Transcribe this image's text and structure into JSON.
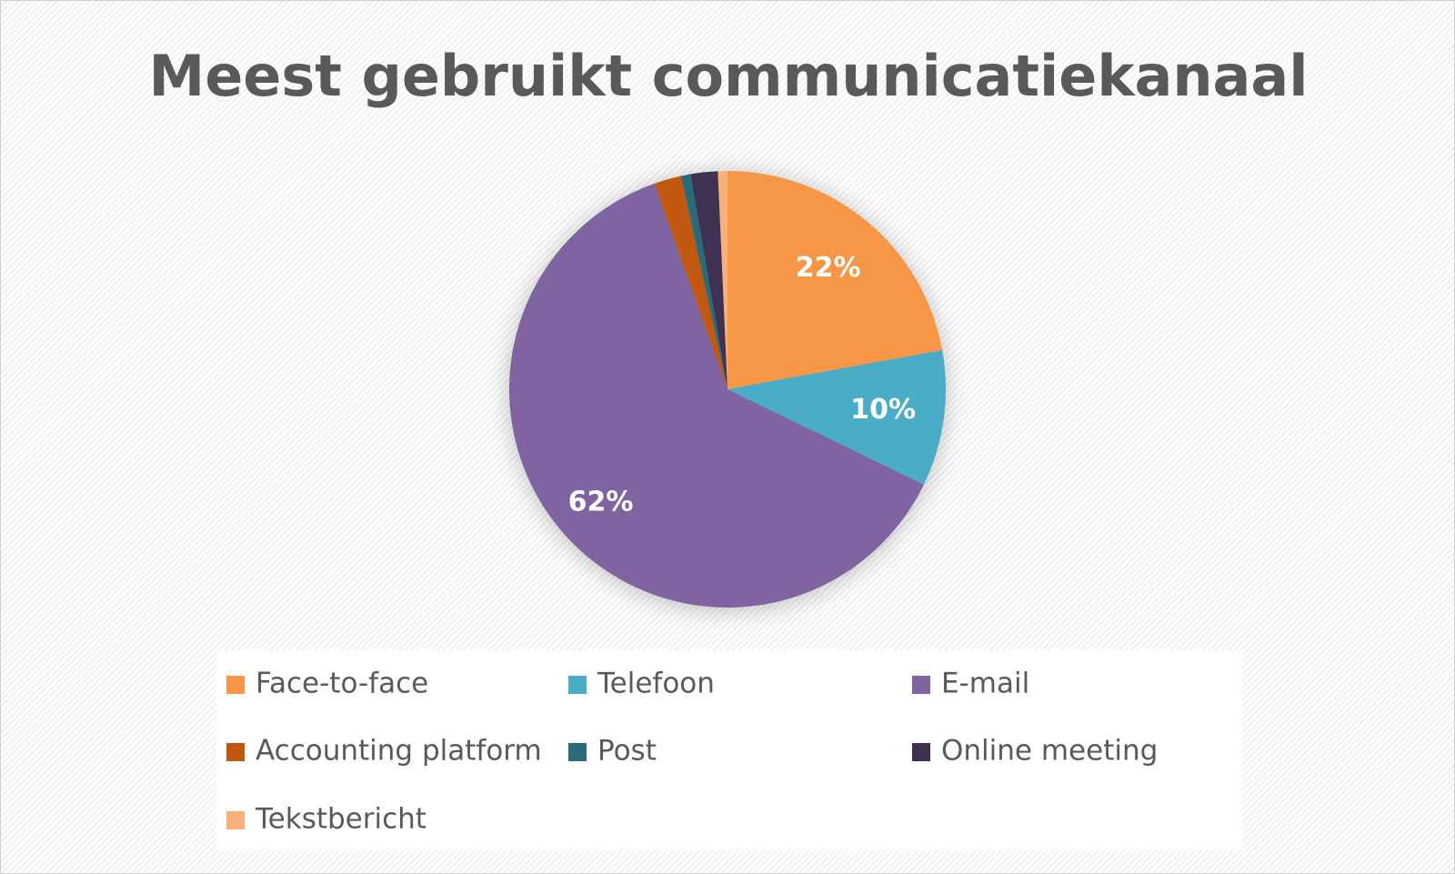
{
  "chart_data": {
    "type": "pie",
    "title": "Meest gebruikt communicatiekanaal",
    "categories": [
      "Face-to-face",
      "Telefoon",
      "E-mail",
      "Accounting platform",
      "Post",
      "Online meeting",
      "Tekstbericht"
    ],
    "values": [
      22,
      10,
      62,
      2,
      0.7,
      2,
      0.7
    ],
    "value_labels": [
      "22%",
      "10%",
      "62%",
      null,
      null,
      null,
      null
    ],
    "colors": [
      "#f79646",
      "#4bacc6",
      "#8064a2",
      "#c0590f",
      "#2a6a79",
      "#3f3151",
      "#fab07b"
    ],
    "legend": "bottom"
  }
}
